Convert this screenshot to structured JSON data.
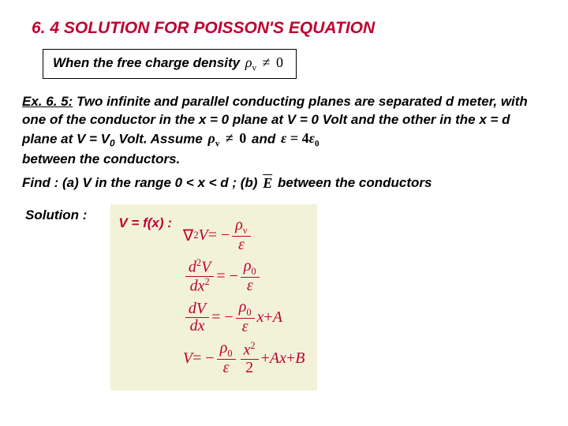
{
  "title": "6. 4 SOLUTION FOR POISSON'S EQUATION",
  "boxed": {
    "prefix": "When the free charge density ",
    "math_rho": "ρ",
    "math_sub": "v",
    "math_rel": "≠",
    "math_zero": "0"
  },
  "problem": {
    "ex_label": "Ex. 6. 5:",
    "line1": " Two infinite and parallel conducting planes are separated d meter, with one of the conductor in the x = 0 plane at V = 0 Volt and the other in the x = d plane at V = V",
    "v0_sub": "0",
    "line1b": " Volt. Assume ",
    "assume_math": "ρ",
    "assume_sub": "v",
    "assume_rel": "≠",
    "assume_zero": "0",
    "and_text": " and ",
    "eps_l": "ε",
    "eps_eq": " = 4",
    "eps_r": "ε",
    "eps_r_sub": "0",
    "line2": "between the conductors."
  },
  "find": {
    "prefix": "Find : (a) V in the range 0 < x < d ; (b) ",
    "E_bar": "E",
    "suffix": "  between the conductors"
  },
  "solution_label": "Solution :",
  "vf_label": "V = f(x) :",
  "equations": {
    "eq1": {
      "lhs_del": "∇",
      "lhs_sup": "2",
      "lhs_V": "V",
      "eq": " = −",
      "rho": "ρ",
      "rho_sub": "ν",
      "eps": "ε"
    },
    "eq2": {
      "d": "d",
      "sup2": "2",
      "V": "V",
      "dx": "dx",
      "eq": " = −",
      "rho": "ρ",
      "rho_sub": "0",
      "eps": "ε"
    },
    "eq3": {
      "dV": "dV",
      "dx": "dx",
      "eq": " = −",
      "rho": "ρ",
      "rho_sub": "0",
      "eps": "ε",
      "x": "x",
      "plus": " + ",
      "A": "A"
    },
    "eq4": {
      "V": "V",
      "eq": " = −",
      "rho": "ρ",
      "rho_sub": "0",
      "eps": "ε",
      "x": "x",
      "sup2": "2",
      "two": "2",
      "plus": " + ",
      "Ax": "Ax",
      "plus2": " + ",
      "B": "B"
    }
  },
  "colors": {
    "accent": "#c00030",
    "eq_bg": "#f2f2d8",
    "text": "#000000"
  }
}
